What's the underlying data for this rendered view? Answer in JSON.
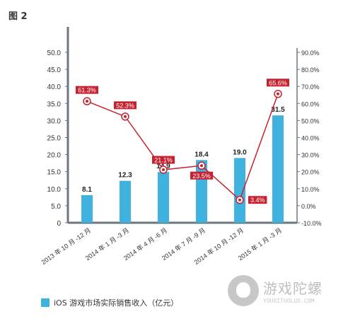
{
  "figure": {
    "label": "图 2"
  },
  "chart_data": {
    "type": "bar",
    "categories": [
      "2013 年 10 月 -12 月",
      "2014 年 1 月 -3 月",
      "2014 年 4 月 -6 月",
      "2014 年 7 月 -9 月",
      "2014 年 10 月 -12 月",
      "2015 年 1 月 -3 月"
    ],
    "series": [
      {
        "name": "iOS 游戏市场实际销售收入（亿元）",
        "type": "bar",
        "axis": "left",
        "values": [
          8.1,
          12.3,
          14.9,
          18.4,
          19.0,
          31.5
        ],
        "labels": [
          "8.1",
          "12.3",
          "14.9",
          "18.4",
          "19.0",
          "31.5"
        ]
      },
      {
        "type": "line",
        "axis": "right",
        "values": [
          61.3,
          52.3,
          21.1,
          23.5,
          3.4,
          65.6
        ],
        "labels": [
          "61.3%",
          "52.3%",
          "21.1%",
          "23.5%",
          "3.4%",
          "65.6%"
        ]
      }
    ],
    "y_left": {
      "min": 0,
      "max": 50,
      "step": 5,
      "ticks": [
        "0",
        "5.0",
        "10.0",
        "15.0",
        "20.0",
        "25.0",
        "30.0",
        "35.0",
        "40.0",
        "45.0",
        "50.0"
      ]
    },
    "y_right": {
      "min": -10,
      "max": 90,
      "step": 10,
      "ticks": [
        "-10.0%",
        "0.0%",
        "10.0%",
        "20.0%",
        "30.0%",
        "40.0%",
        "50.0%",
        "60.0%",
        "70.0%",
        "80.0%",
        "90.0%"
      ]
    },
    "grid": false,
    "legend": "bottom-left",
    "colors": {
      "bar": "#3fb2e0",
      "line": "#c8202f",
      "axis": "#6b7680",
      "label_bg": "#c8202f",
      "label_text": "#ffffff"
    }
  },
  "legend": {
    "label": "iOS 游戏市场实际销售收入（亿元）"
  },
  "watermark": {
    "name": "游戏陀螺",
    "url": "YOUXITUOLUO.COM"
  }
}
